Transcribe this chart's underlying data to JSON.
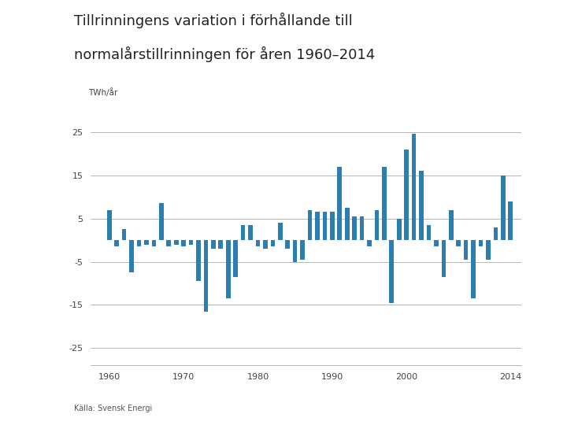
{
  "title_line1": "Tillrinningens variation i förhållande till",
  "title_line2": "normalårstillrinningen för åren 1960–2014",
  "ylabel": "TWh/år",
  "xlabel_ticks": [
    1960,
    1970,
    1980,
    1990,
    2000,
    2014
  ],
  "yticks": [
    -25,
    -15,
    -5,
    5,
    15,
    25
  ],
  "ylim": [
    -29,
    28
  ],
  "bar_color": "#2D7EB0",
  "source": "Källa: Svensk Energi",
  "years": [
    1960,
    1961,
    1962,
    1963,
    1964,
    1965,
    1966,
    1967,
    1968,
    1969,
    1970,
    1971,
    1972,
    1973,
    1974,
    1975,
    1976,
    1977,
    1978,
    1979,
    1980,
    1981,
    1982,
    1983,
    1984,
    1985,
    1986,
    1987,
    1988,
    1989,
    1990,
    1991,
    1992,
    1993,
    1994,
    1995,
    1996,
    1997,
    1998,
    1999,
    2000,
    2001,
    2002,
    2003,
    2004,
    2005,
    2006,
    2007,
    2008,
    2009,
    2010,
    2011,
    2012,
    2013,
    2014
  ],
  "values": [
    7.0,
    -1.5,
    2.5,
    -7.5,
    -1.5,
    -1.0,
    -1.5,
    8.5,
    -1.5,
    -1.0,
    -1.5,
    -1.0,
    -9.5,
    -16.5,
    -2.0,
    -2.0,
    -13.5,
    -8.5,
    3.5,
    3.5,
    -1.5,
    -2.0,
    -1.5,
    4.0,
    -2.0,
    -5.0,
    -4.5,
    7.0,
    6.5,
    6.5,
    6.5,
    17.0,
    7.5,
    5.5,
    5.5,
    -1.5,
    7.0,
    17.0,
    -14.5,
    5.0,
    21.0,
    24.5,
    16.0,
    3.5,
    -1.5,
    -8.5,
    7.0,
    -1.5,
    -4.5,
    -13.5,
    -1.5,
    -4.5,
    3.0,
    15.0,
    9.0
  ]
}
